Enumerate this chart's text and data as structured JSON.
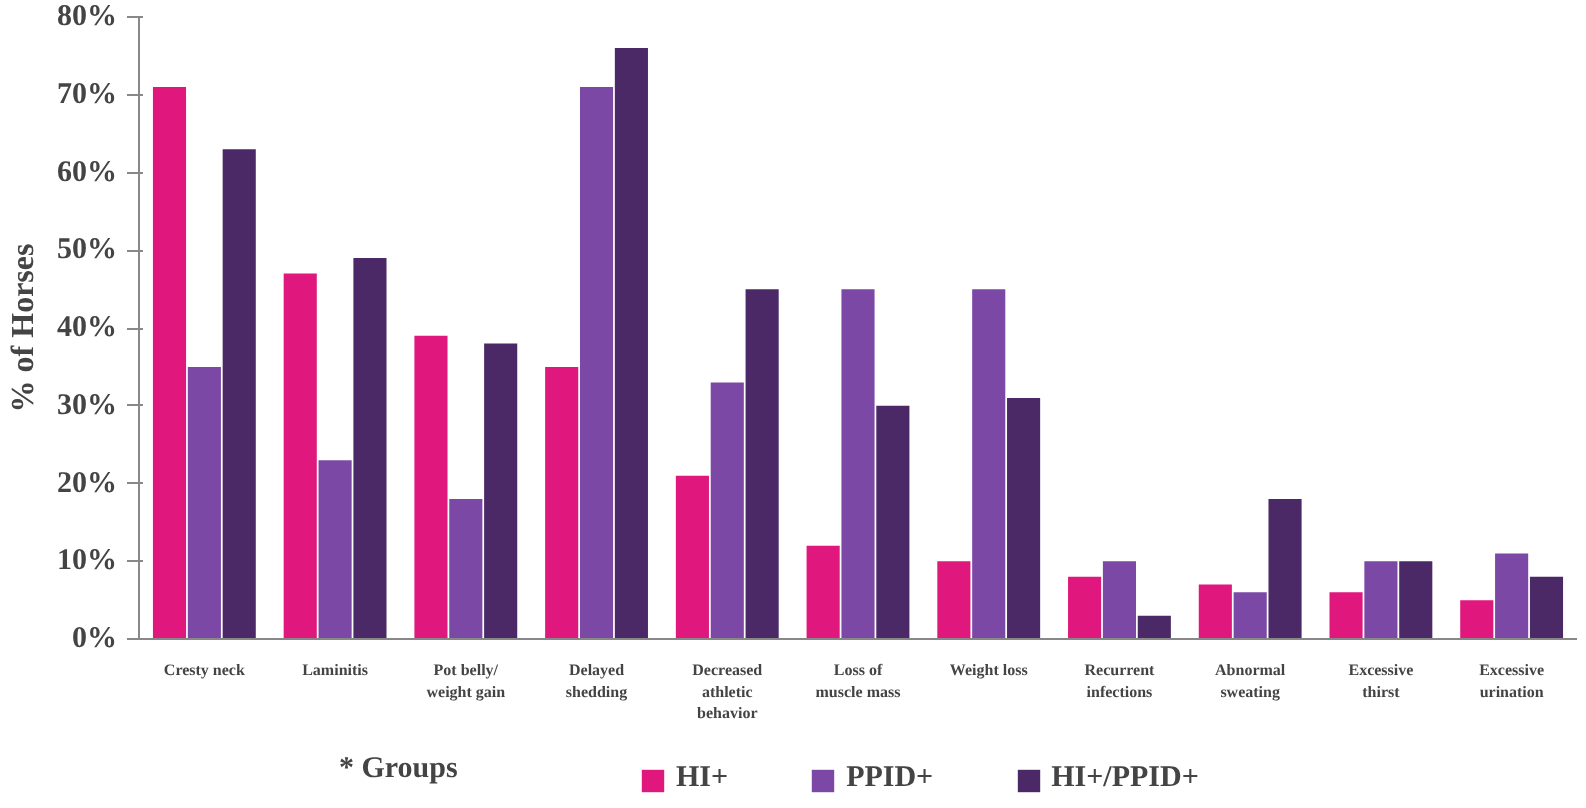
{
  "chart_data": {
    "type": "bar",
    "ylabel": "% of Horses",
    "legend_title": "* Groups",
    "legend": "bottom",
    "grid": false,
    "categories": [
      "Cresty neck",
      "Laminitis",
      "Pot belly/ weight gain",
      "Delayed shedding",
      "Decreased athletic behavior",
      "Loss of muscle mass",
      "Weight loss",
      "Recurrent infections",
      "Abnormal sweating",
      "Excessive thirst",
      "Excessive urination"
    ],
    "series": [
      {
        "name": "HI+",
        "color": "#e0177d",
        "values": [
          71,
          47,
          39,
          35,
          21,
          12,
          10,
          8,
          7,
          6,
          5
        ]
      },
      {
        "name": "PPID+",
        "color": "#7b48a5",
        "values": [
          35,
          23,
          18,
          71,
          33,
          45,
          45,
          10,
          6,
          10,
          11
        ]
      },
      {
        "name": "HI+/PPID+",
        "color": "#4b2866",
        "values": [
          63,
          49,
          38,
          76,
          45,
          30,
          31,
          3,
          18,
          10,
          8
        ]
      }
    ],
    "ylim": [
      0,
      80
    ],
    "yticks": [
      {
        "value": 0,
        "label": "0%"
      },
      {
        "value": 10,
        "label": "10%"
      },
      {
        "value": 20,
        "label": "20%"
      },
      {
        "value": 30,
        "label": "30%"
      },
      {
        "value": 40,
        "label": "40%"
      },
      {
        "value": 50,
        "label": "50%"
      },
      {
        "value": 60,
        "label": "60%"
      },
      {
        "value": 70,
        "label": "70%"
      },
      {
        "value": 80,
        "label": "80%"
      }
    ]
  }
}
